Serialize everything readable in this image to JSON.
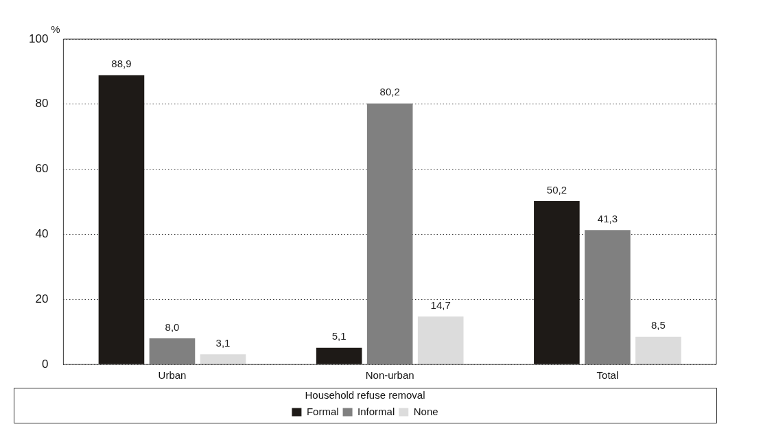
{
  "chart_data": {
    "type": "bar",
    "ylabel": "%",
    "legend_title": "Household refuse removal",
    "categories": [
      "Urban",
      "Non-urban",
      "Total"
    ],
    "series": [
      {
        "name": "Formal",
        "color": "#1e1a17",
        "values": [
          88.9,
          5.1,
          50.2
        ],
        "value_labels": [
          "88,9",
          "5,1",
          "50,2"
        ]
      },
      {
        "name": "Informal",
        "color": "#808080",
        "values": [
          8.0,
          80.2,
          41.3
        ],
        "value_labels": [
          "8,0",
          "80,2",
          "41,3"
        ]
      },
      {
        "name": "None",
        "color": "#dcdcdc",
        "values": [
          3.1,
          14.7,
          8.5
        ],
        "value_labels": [
          "3,1",
          "14,7",
          "8,5"
        ]
      }
    ],
    "ylim": [
      0,
      100
    ],
    "yticks": [
      0,
      20,
      40,
      60,
      80,
      100
    ],
    "grid": "y",
    "line_style": "dotted",
    "legend": "bottom"
  }
}
